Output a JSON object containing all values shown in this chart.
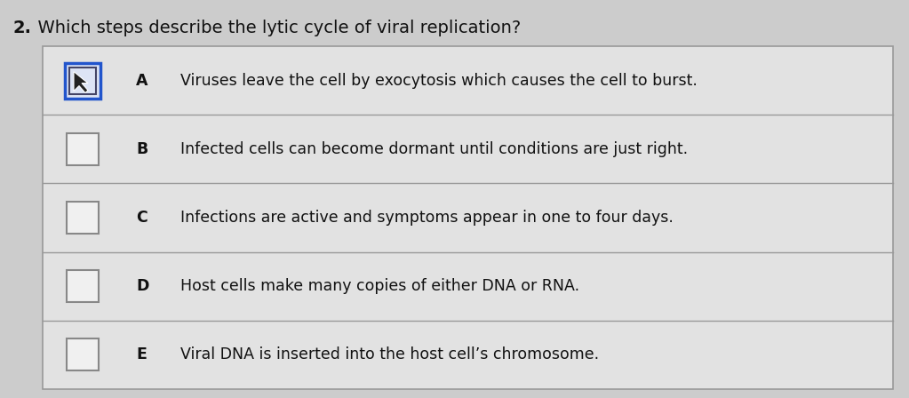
{
  "title_num": "2.",
  "title_text": "  Which steps describe the lytic cycle of viral replication?",
  "rows": [
    {
      "label": "A",
      "text": "Viruses leave the cell by exocytosis which causes the cell to burst.",
      "checked": true
    },
    {
      "label": "B",
      "text": "Infected cells can become dormant until conditions are just right.",
      "checked": false
    },
    {
      "label": "C",
      "text": "Infections are active and symptoms appear in one to four days.",
      "checked": false
    },
    {
      "label": "D",
      "text": "Host cells make many copies of either DNA or RNA.",
      "checked": false
    },
    {
      "label": "E",
      "text": "Viral DNA is inserted into the host cell’s chromosome.",
      "checked": false
    }
  ],
  "bg_color": "#cccccc",
  "table_bg": "#e2e2e2",
  "border_color": "#999999",
  "text_color": "#111111",
  "title_fontsize": 14,
  "row_fontsize": 12.5,
  "label_fontsize": 12.5,
  "checkbox_color_unchecked": "#f0f0f0",
  "checkbox_border_normal": "#888888",
  "checkbox_color_checked_border": "#2255cc",
  "checkbox_color_checked_fill": "#dde4f5"
}
